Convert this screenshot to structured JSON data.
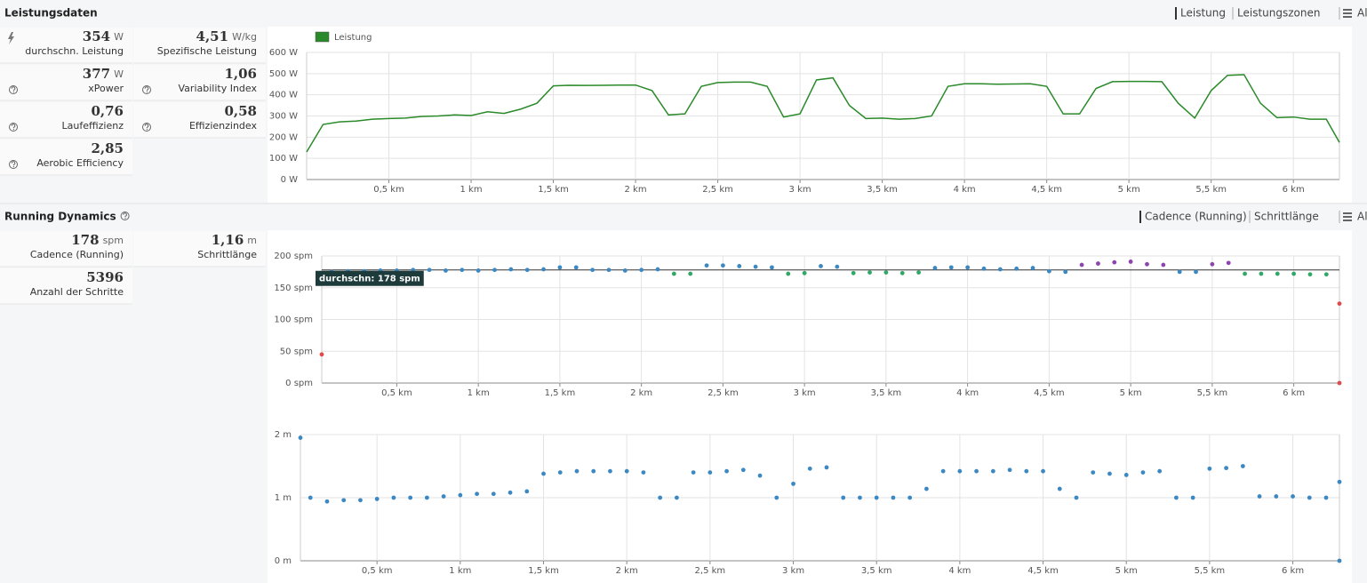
{
  "sections": [
    {
      "title": "Leistungsdaten",
      "links": [
        "Leistung",
        "Leistungszonen",
        "Alle"
      ],
      "stats": [
        {
          "value": "354",
          "unit": "W",
          "label": "durchschn. Leistung"
        },
        {
          "value": "4,51",
          "unit": "W/kg",
          "label": "Spezifische Leistung"
        },
        {
          "value": "377",
          "unit": "W",
          "label": "xPower"
        },
        {
          "value": "1,06",
          "label": "Variability Index"
        },
        {
          "value": "0,76",
          "label": "Laufeffizienz"
        },
        {
          "value": "0,58",
          "label": "Effizienzindex"
        },
        {
          "value": "2,85",
          "label": "Aerobic Efficiency"
        }
      ]
    },
    {
      "title": "Running Dynamics",
      "links": [
        "Cadence (Running)",
        "Schrittlänge",
        "Alle"
      ],
      "stats": [
        {
          "value": "178",
          "unit": "spm",
          "label": "Cadence (Running)"
        },
        {
          "value": "1,16",
          "unit": "m",
          "label": "Schrittlänge"
        },
        {
          "value": "5396",
          "label": "Anzahl der Schritte"
        }
      ]
    }
  ],
  "chart_data": [
    {
      "type": "line",
      "legend": "upper left",
      "grid": true,
      "x": [
        0,
        0.1,
        0.2,
        0.3,
        0.4,
        0.5,
        0.6,
        0.7,
        0.8,
        0.9,
        1.0,
        1.1,
        1.2,
        1.3,
        1.4,
        1.5,
        1.6,
        1.7,
        1.8,
        1.9,
        2.0,
        2.1,
        2.2,
        2.3,
        2.4,
        2.5,
        2.6,
        2.7,
        2.8,
        2.9,
        3.0,
        3.1,
        3.2,
        3.3,
        3.4,
        3.5,
        3.6,
        3.7,
        3.8,
        3.9,
        4.0,
        4.1,
        4.2,
        4.3,
        4.4,
        4.5,
        4.6,
        4.7,
        4.8,
        4.9,
        5.0,
        5.1,
        5.2,
        5.3,
        5.4,
        5.5,
        5.6,
        5.7,
        5.8,
        5.9,
        6.0,
        6.1,
        6.2,
        6.28
      ],
      "series": [
        {
          "name": "Leistung",
          "color": "#2a8a2a",
          "values": [
            130,
            260,
            272,
            276,
            285,
            288,
            290,
            298,
            300,
            305,
            302,
            320,
            312,
            332,
            360,
            442,
            445,
            444,
            445,
            446,
            446,
            420,
            305,
            310,
            440,
            458,
            460,
            460,
            440,
            295,
            310,
            470,
            480,
            350,
            288,
            290,
            285,
            288,
            300,
            440,
            452,
            452,
            450,
            451,
            452,
            440,
            310,
            310,
            430,
            462,
            463,
            463,
            462,
            360,
            290,
            420,
            492,
            495,
            360,
            292,
            295,
            285,
            285,
            175
          ]
        }
      ],
      "xlim": [
        0,
        6.28
      ],
      "xticks": [
        {
          "value": 0.5,
          "label": "0,5 km"
        },
        {
          "value": 1,
          "label": "1 km"
        },
        {
          "value": 1.5,
          "label": "1,5 km"
        },
        {
          "value": 2,
          "label": "2 km"
        },
        {
          "value": 2.5,
          "label": "2,5 km"
        },
        {
          "value": 3,
          "label": "3 km"
        },
        {
          "value": 3.5,
          "label": "3,5 km"
        },
        {
          "value": 4,
          "label": "4 km"
        },
        {
          "value": 4.5,
          "label": "4,5 km"
        },
        {
          "value": 5,
          "label": "5 km"
        },
        {
          "value": 5.5,
          "label": "5,5 km"
        },
        {
          "value": 6,
          "label": "6 km"
        }
      ],
      "ylim": [
        0,
        600
      ],
      "yticks": [
        {
          "value": 0,
          "label": "0 W"
        },
        {
          "value": 100,
          "label": "100 W"
        },
        {
          "value": 200,
          "label": "200 W"
        },
        {
          "value": 300,
          "label": "300 W"
        },
        {
          "value": 400,
          "label": "400 W"
        },
        {
          "value": 500,
          "label": "500 W"
        },
        {
          "value": 600,
          "label": "600 W"
        }
      ]
    },
    {
      "type": "scatter",
      "grid": true,
      "x": [
        0.04,
        0.1,
        0.2,
        0.3,
        0.4,
        0.5,
        0.6,
        0.7,
        0.8,
        0.9,
        1.0,
        1.1,
        1.2,
        1.3,
        1.4,
        1.5,
        1.6,
        1.7,
        1.8,
        1.9,
        2.0,
        2.1,
        2.2,
        2.3,
        2.4,
        2.5,
        2.6,
        2.7,
        2.8,
        2.9,
        3.0,
        3.1,
        3.2,
        3.3,
        3.4,
        3.5,
        3.6,
        3.7,
        3.8,
        3.9,
        4.0,
        4.1,
        4.2,
        4.3,
        4.4,
        4.5,
        4.6,
        4.7,
        4.8,
        4.9,
        5.0,
        5.1,
        5.2,
        5.3,
        5.4,
        5.5,
        5.6,
        5.7,
        5.8,
        5.9,
        6.0,
        6.1,
        6.2,
        6.28,
        6.28
      ],
      "values": [
        45,
        175,
        176,
        176,
        177,
        177,
        178,
        178,
        177,
        178,
        177,
        178,
        179,
        178,
        179,
        182,
        182,
        178,
        178,
        177,
        178,
        179,
        172,
        172,
        185,
        185,
        184,
        183,
        182,
        172,
        173,
        184,
        183,
        173,
        174,
        174,
        173,
        174,
        181,
        182,
        182,
        180,
        179,
        180,
        181,
        176,
        175,
        186,
        188,
        190,
        191,
        187,
        186,
        175,
        175,
        187,
        189,
        172,
        172,
        172,
        172,
        171,
        171,
        125,
        0
      ],
      "colors": [
        "#e04a4a",
        "#3b88c3",
        "#3b88c3",
        "#3b88c3",
        "#3b88c3",
        "#3b88c3",
        "#3b88c3",
        "#3b88c3",
        "#3b88c3",
        "#3b88c3",
        "#3b88c3",
        "#3b88c3",
        "#3b88c3",
        "#3b88c3",
        "#3b88c3",
        "#3b88c3",
        "#3b88c3",
        "#3b88c3",
        "#3b88c3",
        "#3b88c3",
        "#3b88c3",
        "#3b88c3",
        "#2fa866",
        "#2fa866",
        "#3b88c3",
        "#3b88c3",
        "#3b88c3",
        "#3b88c3",
        "#3b88c3",
        "#2fa866",
        "#2fa866",
        "#3b88c3",
        "#3b88c3",
        "#2fa866",
        "#2fa866",
        "#2fa866",
        "#2fa866",
        "#2fa866",
        "#3b88c3",
        "#3b88c3",
        "#3b88c3",
        "#3b88c3",
        "#3b88c3",
        "#3b88c3",
        "#3b88c3",
        "#3b88c3",
        "#3b88c3",
        "#8e44ad",
        "#8e44ad",
        "#8e44ad",
        "#8e44ad",
        "#8e44ad",
        "#8e44ad",
        "#3b88c3",
        "#3b88c3",
        "#8e44ad",
        "#8e44ad",
        "#2fa866",
        "#2fa866",
        "#2fa866",
        "#2fa866",
        "#2fa866",
        "#2fa866",
        "#e04a4a",
        "#e04a4a"
      ],
      "average": {
        "value": 178,
        "label": "durchschn: 178 spm"
      },
      "xlim": [
        0.04,
        6.28
      ],
      "xticks": [
        {
          "value": 0.5,
          "label": "0,5 km"
        },
        {
          "value": 1,
          "label": "1 km"
        },
        {
          "value": 1.5,
          "label": "1,5 km"
        },
        {
          "value": 2,
          "label": "2 km"
        },
        {
          "value": 2.5,
          "label": "2,5 km"
        },
        {
          "value": 3,
          "label": "3 km"
        },
        {
          "value": 3.5,
          "label": "3,5 km"
        },
        {
          "value": 4,
          "label": "4 km"
        },
        {
          "value": 4.5,
          "label": "4,5 km"
        },
        {
          "value": 5,
          "label": "5 km"
        },
        {
          "value": 5.5,
          "label": "5,5 km"
        },
        {
          "value": 6,
          "label": "6 km"
        }
      ],
      "ylim": [
        0,
        200
      ],
      "yticks": [
        {
          "value": 0,
          "label": "0 spm"
        },
        {
          "value": 50,
          "label": "50 spm"
        },
        {
          "value": 100,
          "label": "100 spm"
        },
        {
          "value": 150,
          "label": "150 spm"
        },
        {
          "value": 200,
          "label": "200 spm"
        }
      ]
    },
    {
      "type": "scatter",
      "grid": true,
      "color": "#3b88c3",
      "x": [
        0.04,
        0.1,
        0.2,
        0.3,
        0.4,
        0.5,
        0.6,
        0.7,
        0.8,
        0.9,
        1.0,
        1.1,
        1.2,
        1.3,
        1.4,
        1.5,
        1.6,
        1.7,
        1.8,
        1.9,
        2.0,
        2.1,
        2.2,
        2.3,
        2.4,
        2.5,
        2.6,
        2.7,
        2.8,
        2.9,
        3.0,
        3.1,
        3.2,
        3.3,
        3.4,
        3.5,
        3.6,
        3.7,
        3.8,
        3.9,
        4.0,
        4.1,
        4.2,
        4.3,
        4.4,
        4.5,
        4.6,
        4.7,
        4.8,
        4.9,
        5.0,
        5.1,
        5.2,
        5.3,
        5.4,
        5.5,
        5.6,
        5.7,
        5.8,
        5.9,
        6.0,
        6.1,
        6.2,
        6.28,
        6.28
      ],
      "values": [
        1.95,
        1.0,
        0.94,
        0.96,
        0.96,
        0.98,
        1.0,
        1.0,
        1.0,
        1.02,
        1.04,
        1.06,
        1.06,
        1.08,
        1.1,
        1.38,
        1.4,
        1.42,
        1.42,
        1.42,
        1.42,
        1.4,
        1.0,
        1.0,
        1.4,
        1.4,
        1.42,
        1.44,
        1.35,
        1.0,
        1.22,
        1.46,
        1.48,
        1.0,
        1.0,
        1.0,
        1.0,
        1.0,
        1.14,
        1.42,
        1.42,
        1.42,
        1.42,
        1.44,
        1.42,
        1.42,
        1.14,
        1.0,
        1.4,
        1.38,
        1.36,
        1.4,
        1.42,
        1.0,
        1.0,
        1.46,
        1.47,
        1.5,
        1.02,
        1.02,
        1.02,
        1.0,
        1.0,
        1.25,
        0
      ],
      "xlim": [
        0.04,
        6.28
      ],
      "xticks": [
        {
          "value": 0.5,
          "label": "0,5 km"
        },
        {
          "value": 1,
          "label": "1 km"
        },
        {
          "value": 1.5,
          "label": "1,5 km"
        },
        {
          "value": 2,
          "label": "2 km"
        },
        {
          "value": 2.5,
          "label": "2,5 km"
        },
        {
          "value": 3,
          "label": "3 km"
        },
        {
          "value": 3.5,
          "label": "3,5 km"
        },
        {
          "value": 4,
          "label": "4 km"
        },
        {
          "value": 4.5,
          "label": "4,5 km"
        },
        {
          "value": 5,
          "label": "5 km"
        },
        {
          "value": 5.5,
          "label": "5,5 km"
        },
        {
          "value": 6,
          "label": "6 km"
        }
      ],
      "ylim": [
        0,
        2
      ],
      "yticks": [
        {
          "value": 0,
          "label": "0 m"
        },
        {
          "value": 1,
          "label": "1 m"
        },
        {
          "value": 2,
          "label": "2 m"
        }
      ]
    }
  ]
}
